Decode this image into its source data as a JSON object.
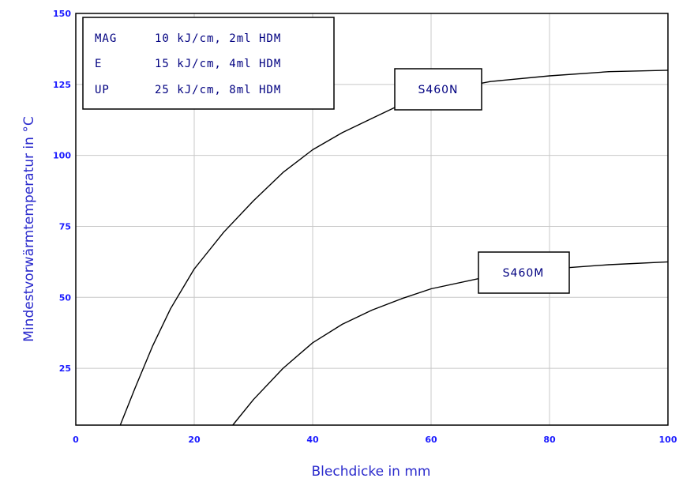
{
  "chart_data": {
    "type": "line",
    "xlabel": "Blechdicke in mm",
    "ylabel": "Mindestvorwärmtemperatur in °C",
    "xlim": [
      0,
      100
    ],
    "ylim": [
      5,
      150
    ],
    "x_ticks": [
      "0",
      "20",
      "40",
      "60",
      "80",
      "100"
    ],
    "y_ticks": [
      "25",
      "50",
      "75",
      "100",
      "125",
      "150"
    ],
    "grid": true,
    "legend_placement": "top-left",
    "legend_rows": [
      {
        "name": "MAG",
        "value": "10 kJ/cm, 2ml HDM"
      },
      {
        "name": "E",
        "value": "15 kJ/cm, 4ml HDM"
      },
      {
        "name": "UP",
        "value": "25 kJ/cm, 8ml HDM"
      }
    ],
    "series": [
      {
        "name": "S460N",
        "x": [
          7.5,
          10,
          13,
          16,
          20,
          25,
          30,
          35,
          40,
          45,
          50,
          55,
          60,
          70,
          80,
          90,
          100
        ],
        "values": [
          5,
          18,
          33,
          46,
          60,
          73,
          84,
          94,
          102,
          108,
          113,
          118,
          122,
          126,
          128,
          129.5,
          130
        ]
      },
      {
        "name": "S460M",
        "x": [
          26.5,
          30,
          35,
          40,
          45,
          50,
          55,
          60,
          70,
          80,
          90,
          100
        ],
        "values": [
          5,
          14,
          25,
          34,
          40.5,
          45.5,
          49.5,
          53,
          57.5,
          60,
          61.5,
          62.5
        ]
      }
    ],
    "colors": {
      "axis_text": "#2a2acc",
      "line": "#000000",
      "grid": "#c8c8c8"
    }
  }
}
